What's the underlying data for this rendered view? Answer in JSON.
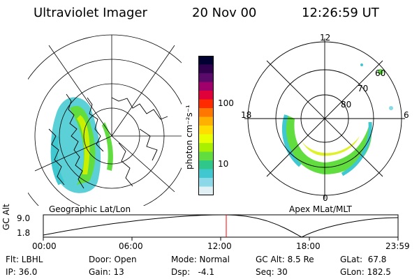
{
  "header": {
    "instrument": "Ultraviolet Imager",
    "date": "20 Nov 00",
    "time": "12:26:59 UT"
  },
  "colorbar": {
    "unit_label": "photon cm⁻²s⁻¹",
    "tick_100": "100",
    "tick_10": "10",
    "colors": [
      "#000033",
      "#30004f",
      "#5a0a6a",
      "#a0006a",
      "#e0003a",
      "#ff2a00",
      "#ff7700",
      "#ffb000",
      "#ffdd00",
      "#e8ff00",
      "#a8f000",
      "#62dd40",
      "#30c88a",
      "#40c8d0",
      "#8ad8e8",
      "#e0f0f4"
    ]
  },
  "left_map": {
    "caption": "Geographic Lat/Lon"
  },
  "right_map": {
    "caption": "Apex MLat/MLT",
    "mlt_labels": {
      "top": "12",
      "bottom": "0",
      "left": "18",
      "right": "6"
    },
    "lat_labels": [
      "60",
      "70",
      "80"
    ]
  },
  "timeline": {
    "ylabel": "GC Alt",
    "ytick_top": "9.0",
    "ytick_bottom": "1.8",
    "x_ticks": [
      "00:00",
      "06:00",
      "12:00",
      "18:00",
      "23:59"
    ],
    "marker_color": "#ff0000"
  },
  "footer": {
    "flt": "Flt: LBHL",
    "ip": "IP: 36.0",
    "door": "Door: Open",
    "gain": "Gain: 13",
    "mode": "Mode: Normal",
    "dsp": "Dsp:   -4.1",
    "gc_alt": "GC Alt: 8.5 Re",
    "seq": "Seq: 30",
    "glat": "GLat:  67.8",
    "glon": "GLon: 182.5"
  }
}
